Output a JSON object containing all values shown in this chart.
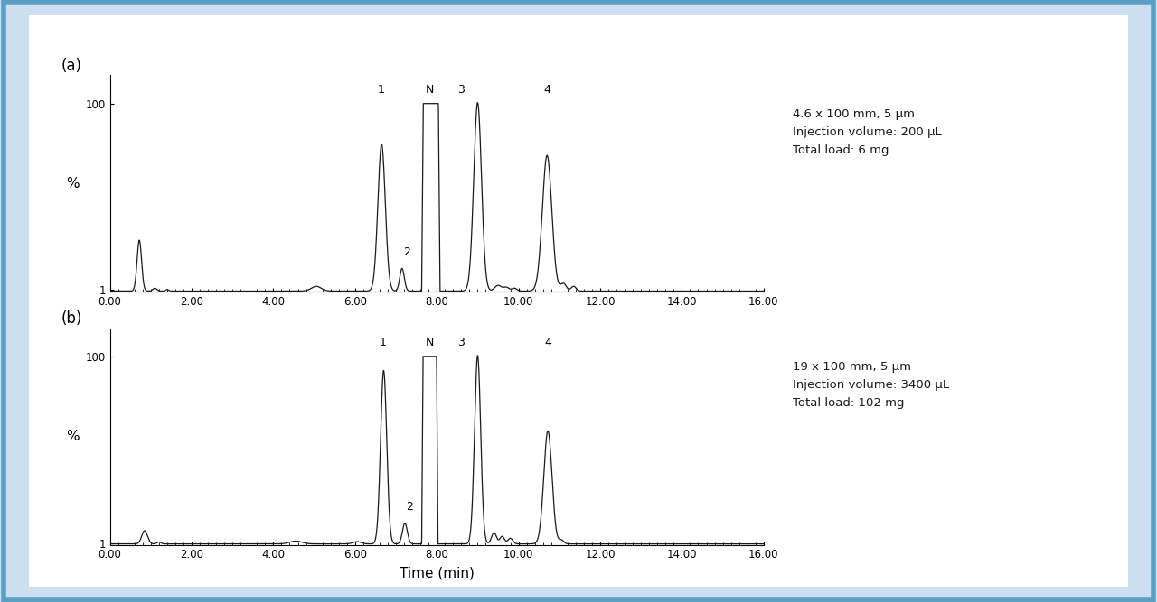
{
  "background_color": "#ccdff0",
  "panel_bg": "#ffffff",
  "line_color": "#1a1a1a",
  "xlim": [
    0,
    16.0
  ],
  "ylim": [
    0,
    115
  ],
  "xticks": [
    0.0,
    2.0,
    4.0,
    6.0,
    8.0,
    10.0,
    12.0,
    14.0,
    16.0
  ],
  "xtick_labels": [
    "0.00",
    "2.00",
    "4.00",
    "6.00",
    "8.00",
    "10.00",
    "12.00",
    "14.00",
    "16.00"
  ],
  "ytick_positions": [
    1,
    100
  ],
  "ytick_labels": [
    "1",
    "100"
  ],
  "ylabel": "%",
  "xlabel": "Time (min)",
  "panel_a_label": "(a)",
  "panel_b_label": "(b)",
  "panel_a_annotation": "4.6 x 100 mm, 5 μm\nInjection volume: 200 μL\nTotal load: 6 mg",
  "panel_b_annotation": "19 x 100 mm, 5 μm\nInjection volume: 3400 μL\nTotal load: 102 mg",
  "border_color": "#5b9fc4",
  "border_lw": 4
}
